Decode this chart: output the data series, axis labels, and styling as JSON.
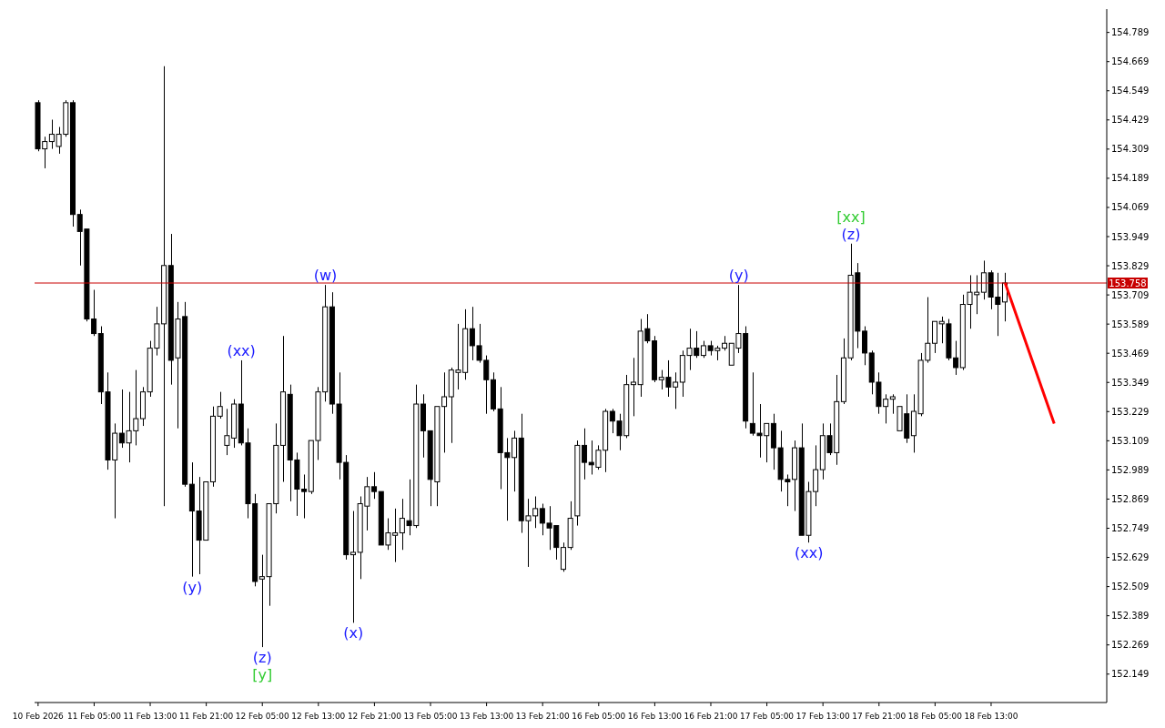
{
  "chart_data": {
    "type": "candlestick",
    "categories": [
      "10 Feb 2026",
      null,
      null,
      null,
      null,
      null,
      null,
      null,
      "11 Feb 05:00",
      null,
      null,
      null,
      null,
      null,
      null,
      null,
      "11 Feb 13:00",
      null,
      null,
      null,
      null,
      null,
      null,
      null,
      "11 Feb 21:00",
      null,
      null,
      null,
      null,
      null,
      null,
      null,
      "12 Feb 05:00",
      null,
      null,
      null,
      null,
      null,
      null,
      null,
      "12 Feb 13:00",
      null,
      null,
      null,
      null,
      null,
      null,
      null,
      "12 Feb 21:00",
      null,
      null,
      null,
      null,
      null,
      null,
      null,
      "13 Feb 05:00",
      null,
      null,
      null,
      null,
      null,
      null,
      null,
      "13 Feb 13:00",
      null,
      null,
      null,
      null,
      null,
      null,
      null,
      "13 Feb 21:00",
      null,
      null,
      null,
      null,
      null,
      null,
      null,
      "16 Feb 05:00",
      null,
      null,
      null,
      null,
      null,
      null,
      null,
      "16 Feb 13:00",
      null,
      null,
      null,
      null,
      null,
      null,
      null,
      "16 Feb 21:00",
      null,
      null,
      null,
      null,
      null,
      null,
      null,
      "17 Feb 05:00",
      null,
      null,
      null,
      null,
      null,
      null,
      null,
      "17 Feb 13:00",
      null,
      null,
      null,
      null,
      null,
      null,
      null,
      "17 Feb 21:00",
      null,
      null,
      null,
      null,
      null,
      null,
      null,
      "18 Feb 05:00",
      null,
      null,
      null,
      null,
      null,
      null,
      null,
      "18 Feb 13:00",
      null,
      null,
      null,
      null,
      null,
      null,
      null,
      null,
      null,
      null,
      null,
      null,
      null,
      null,
      null,
      null
    ],
    "ohlc": [
      [
        154.5,
        154.51,
        154.3,
        154.31
      ],
      [
        154.31,
        154.36,
        154.23,
        154.34
      ],
      [
        154.34,
        154.43,
        154.31,
        154.37
      ],
      [
        154.32,
        154.4,
        154.29,
        154.37
      ],
      [
        154.37,
        154.51,
        154.36,
        154.5
      ],
      [
        154.5,
        154.51,
        153.99,
        154.04
      ],
      [
        154.04,
        154.06,
        153.83,
        153.97
      ],
      [
        153.98,
        153.98,
        153.6,
        153.61
      ],
      [
        153.61,
        153.73,
        153.54,
        153.55
      ],
      [
        153.55,
        153.58,
        153.26,
        153.31
      ],
      [
        153.31,
        153.39,
        152.99,
        153.03
      ],
      [
        153.03,
        153.18,
        152.79,
        153.14
      ],
      [
        153.14,
        153.32,
        153.08,
        153.1
      ],
      [
        153.1,
        153.31,
        153.02,
        153.15
      ],
      [
        153.15,
        153.4,
        153.09,
        153.2
      ],
      [
        153.2,
        153.33,
        153.17,
        153.31
      ],
      [
        153.31,
        153.52,
        153.29,
        153.49
      ],
      [
        153.49,
        153.66,
        153.46,
        153.59
      ],
      [
        153.59,
        154.65,
        152.84,
        153.83
      ],
      [
        153.83,
        153.96,
        153.34,
        153.44
      ],
      [
        153.45,
        153.68,
        153.16,
        153.61
      ],
      [
        153.62,
        153.68,
        152.92,
        152.93
      ],
      [
        152.93,
        153.02,
        152.55,
        152.82
      ],
      [
        152.82,
        152.96,
        152.56,
        152.7
      ],
      [
        152.7,
        152.94,
        152.7,
        152.94
      ],
      [
        152.94,
        153.25,
        152.92,
        153.21
      ],
      [
        153.21,
        153.31,
        153.2,
        153.25
      ],
      [
        153.09,
        153.24,
        153.05,
        153.13
      ],
      [
        153.12,
        153.28,
        153.08,
        153.26
      ],
      [
        153.26,
        153.44,
        153.09,
        153.1
      ],
      [
        153.1,
        153.16,
        152.79,
        152.85
      ],
      [
        152.85,
        152.89,
        152.51,
        152.53
      ],
      [
        152.54,
        152.64,
        152.26,
        152.55
      ],
      [
        152.55,
        152.85,
        152.43,
        152.85
      ],
      [
        152.85,
        153.18,
        152.81,
        153.09
      ],
      [
        153.09,
        153.54,
        152.94,
        153.31
      ],
      [
        153.3,
        153.34,
        152.86,
        153.03
      ],
      [
        153.03,
        153.06,
        152.8,
        152.91
      ],
      [
        152.91,
        152.97,
        152.79,
        152.9
      ],
      [
        152.9,
        153.11,
        152.89,
        153.11
      ],
      [
        153.11,
        153.33,
        153.03,
        153.31
      ],
      [
        153.31,
        153.75,
        153.27,
        153.66
      ],
      [
        153.66,
        153.72,
        153.22,
        153.26
      ],
      [
        153.26,
        153.39,
        152.95,
        153.02
      ],
      [
        153.02,
        153.05,
        152.62,
        152.64
      ],
      [
        152.64,
        152.82,
        152.36,
        152.65
      ],
      [
        152.65,
        152.88,
        152.54,
        152.85
      ],
      [
        152.84,
        152.96,
        152.74,
        152.92
      ],
      [
        152.92,
        152.98,
        152.87,
        152.9
      ],
      [
        152.9,
        152.9,
        152.68,
        152.68
      ],
      [
        152.68,
        152.79,
        152.66,
        152.73
      ],
      [
        152.72,
        152.83,
        152.61,
        152.73
      ],
      [
        152.73,
        152.87,
        152.66,
        152.79
      ],
      [
        152.78,
        152.95,
        152.72,
        152.76
      ],
      [
        152.76,
        153.34,
        152.75,
        153.26
      ],
      [
        153.26,
        153.3,
        153.04,
        153.15
      ],
      [
        153.15,
        153.15,
        152.84,
        152.95
      ],
      [
        152.94,
        153.25,
        152.84,
        153.25
      ],
      [
        153.25,
        153.39,
        153.06,
        153.29
      ],
      [
        153.29,
        153.41,
        153.1,
        153.4
      ],
      [
        153.39,
        153.59,
        153.32,
        153.4
      ],
      [
        153.39,
        153.65,
        153.36,
        153.57
      ],
      [
        153.57,
        153.66,
        153.44,
        153.5
      ],
      [
        153.5,
        153.59,
        153.43,
        153.44
      ],
      [
        153.44,
        153.46,
        153.22,
        153.36
      ],
      [
        153.36,
        153.39,
        153.23,
        153.24
      ],
      [
        153.24,
        153.33,
        152.91,
        153.06
      ],
      [
        153.06,
        153.12,
        152.78,
        153.04
      ],
      [
        153.04,
        153.15,
        152.9,
        153.12
      ],
      [
        153.12,
        153.22,
        152.73,
        152.78
      ],
      [
        152.78,
        152.87,
        152.59,
        152.8
      ],
      [
        152.8,
        152.88,
        152.75,
        152.83
      ],
      [
        152.83,
        152.85,
        152.72,
        152.77
      ],
      [
        152.77,
        152.84,
        152.66,
        152.75
      ],
      [
        152.76,
        152.76,
        152.62,
        152.67
      ],
      [
        152.58,
        152.69,
        152.57,
        152.67
      ],
      [
        152.67,
        152.86,
        152.66,
        152.79
      ],
      [
        152.8,
        153.11,
        152.76,
        153.09
      ],
      [
        153.09,
        153.16,
        152.95,
        153.02
      ],
      [
        153.02,
        153.11,
        152.97,
        153.01
      ],
      [
        153.0,
        153.09,
        152.99,
        153.07
      ],
      [
        153.07,
        153.24,
        152.98,
        153.23
      ],
      [
        153.23,
        153.24,
        153.14,
        153.19
      ],
      [
        153.19,
        153.22,
        153.07,
        153.13
      ],
      [
        153.13,
        153.38,
        153.12,
        153.34
      ],
      [
        153.34,
        153.45,
        153.21,
        153.35
      ],
      [
        153.34,
        153.61,
        153.29,
        153.56
      ],
      [
        153.57,
        153.63,
        153.51,
        153.52
      ],
      [
        153.52,
        153.54,
        153.35,
        153.36
      ],
      [
        153.36,
        153.4,
        153.32,
        153.37
      ],
      [
        153.37,
        153.44,
        153.29,
        153.33
      ],
      [
        153.33,
        153.39,
        153.24,
        153.35
      ],
      [
        153.35,
        153.48,
        153.29,
        153.46
      ],
      [
        153.46,
        153.57,
        153.4,
        153.49
      ],
      [
        153.49,
        153.56,
        153.45,
        153.46
      ],
      [
        153.46,
        153.52,
        153.45,
        153.5
      ],
      [
        153.5,
        153.52,
        153.46,
        153.48
      ],
      [
        153.48,
        153.5,
        153.44,
        153.49
      ],
      [
        153.49,
        153.54,
        153.48,
        153.51
      ],
      [
        153.42,
        153.51,
        153.42,
        153.51
      ],
      [
        153.49,
        153.75,
        153.47,
        153.55
      ],
      [
        153.55,
        153.58,
        153.16,
        153.19
      ],
      [
        153.18,
        153.39,
        153.13,
        153.14
      ],
      [
        153.14,
        153.26,
        153.04,
        153.13
      ],
      [
        153.13,
        153.18,
        153.02,
        153.18
      ],
      [
        153.18,
        153.22,
        152.99,
        153.08
      ],
      [
        153.08,
        153.15,
        152.9,
        152.95
      ],
      [
        152.95,
        152.97,
        152.84,
        152.94
      ],
      [
        152.95,
        153.11,
        152.82,
        153.08
      ],
      [
        153.08,
        153.18,
        152.72,
        152.72
      ],
      [
        152.72,
        152.94,
        152.69,
        152.9
      ],
      [
        152.9,
        153.09,
        152.84,
        152.99
      ],
      [
        152.99,
        153.18,
        152.95,
        153.13
      ],
      [
        153.13,
        153.18,
        153.05,
        153.06
      ],
      [
        153.06,
        153.38,
        153.01,
        153.27
      ],
      [
        153.27,
        153.53,
        153.26,
        153.45
      ],
      [
        153.45,
        153.92,
        153.44,
        153.79
      ],
      [
        153.8,
        153.84,
        153.49,
        153.56
      ],
      [
        153.56,
        153.58,
        153.42,
        153.47
      ],
      [
        153.47,
        153.48,
        153.3,
        153.35
      ],
      [
        153.35,
        153.39,
        153.22,
        153.25
      ],
      [
        153.25,
        153.3,
        153.18,
        153.28
      ],
      [
        153.28,
        153.3,
        153.22,
        153.29
      ],
      [
        153.15,
        153.25,
        153.15,
        153.25
      ],
      [
        153.22,
        153.3,
        153.1,
        153.12
      ],
      [
        153.13,
        153.3,
        153.06,
        153.23
      ],
      [
        153.22,
        153.47,
        153.21,
        153.44
      ],
      [
        153.44,
        153.7,
        153.43,
        153.51
      ],
      [
        153.51,
        153.6,
        153.47,
        153.6
      ],
      [
        153.59,
        153.62,
        153.51,
        153.6
      ],
      [
        153.59,
        153.61,
        153.44,
        153.45
      ],
      [
        153.45,
        153.52,
        153.38,
        153.41
      ],
      [
        153.41,
        153.71,
        153.4,
        153.67
      ],
      [
        153.67,
        153.79,
        153.57,
        153.72
      ],
      [
        153.71,
        153.79,
        153.63,
        153.72
      ],
      [
        153.72,
        153.85,
        153.69,
        153.8
      ],
      [
        153.8,
        153.81,
        153.65,
        153.7
      ],
      [
        153.7,
        153.8,
        153.54,
        153.67
      ],
      [
        153.68,
        153.8,
        153.6,
        153.758
      ],
      null,
      null,
      null,
      null,
      null,
      null,
      null,
      null,
      null,
      null,
      null,
      null,
      null,
      null
    ],
    "series": [
      {
        "type": "line",
        "color": "#ff0000",
        "values": [
          null,
          null,
          null,
          null,
          null,
          null,
          null,
          null,
          null,
          null,
          null,
          null,
          null,
          null,
          null,
          null,
          null,
          null,
          null,
          null,
          null,
          null,
          null,
          null,
          null,
          null,
          null,
          null,
          null,
          null,
          null,
          null,
          null,
          null,
          null,
          null,
          null,
          null,
          null,
          null,
          null,
          null,
          null,
          null,
          null,
          null,
          null,
          null,
          null,
          null,
          null,
          null,
          null,
          null,
          null,
          null,
          null,
          null,
          null,
          null,
          null,
          null,
          null,
          null,
          null,
          null,
          null,
          null,
          null,
          null,
          null,
          null,
          null,
          null,
          null,
          null,
          null,
          null,
          null,
          null,
          null,
          null,
          null,
          null,
          null,
          null,
          null,
          null,
          null,
          null,
          null,
          null,
          null,
          null,
          null,
          null,
          null,
          null,
          null,
          null,
          null,
          null,
          null,
          null,
          null,
          null,
          null,
          null,
          null,
          null,
          null,
          null,
          null,
          null,
          null,
          null,
          null,
          null,
          null,
          null,
          null,
          null,
          null,
          null,
          null,
          null,
          null,
          null,
          null,
          null,
          null,
          null,
          null,
          null,
          null,
          null,
          null,
          null,
          153.758,
          null,
          null,
          null,
          null,
          null,
          null,
          153.18,
          null,
          null,
          null,
          null,
          null,
          null,
          null
        ]
      }
    ],
    "ylim": [
      152.032,
      154.885
    ],
    "yticks": [
      152.149,
      152.269,
      152.389,
      152.509,
      152.629,
      152.749,
      152.869,
      152.989,
      153.109,
      153.229,
      153.349,
      153.469,
      153.589,
      153.709,
      153.829,
      153.949,
      154.069,
      154.189,
      154.309,
      154.429,
      154.549,
      154.669,
      154.789
    ],
    "ref_lines": [
      {
        "axis": "y",
        "value": 153.758,
        "label": "153.758",
        "color": "#c80000"
      }
    ],
    "annotations": [
      "(y)",
      "(xx)",
      "(z)",
      "[y]",
      "(w)",
      "(x)",
      "(y)",
      "(xx)",
      "(z)",
      "[xx]"
    ]
  }
}
